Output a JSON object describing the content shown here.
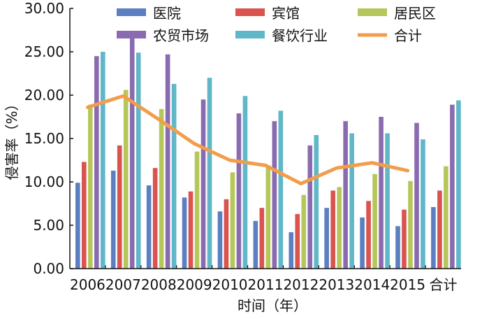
{
  "chart_data": {
    "type": "bar",
    "title": "",
    "xlabel": "时间（年）",
    "ylabel": "侵害率（%）",
    "ylim": [
      0,
      30
    ],
    "yticks": [
      "0.00",
      "5.00",
      "10.00",
      "15.00",
      "20.00",
      "25.00",
      "30.00"
    ],
    "categories": [
      "2006",
      "2007",
      "2008",
      "2009",
      "2010",
      "2011",
      "2012",
      "2013",
      "2014",
      "2015",
      "合计"
    ],
    "series": [
      {
        "name": "医院",
        "color": "#5b7fc0",
        "values": [
          9.9,
          11.3,
          9.6,
          8.2,
          6.6,
          5.5,
          4.2,
          7.0,
          5.9,
          4.9,
          7.1
        ]
      },
      {
        "name": "宾馆",
        "color": "#d9534f",
        "values": [
          12.3,
          14.2,
          11.6,
          8.9,
          8.0,
          7.0,
          6.3,
          9.0,
          7.8,
          6.8,
          9.0
        ]
      },
      {
        "name": "居民区",
        "color": "#b5c75a",
        "values": [
          18.9,
          20.6,
          18.4,
          13.5,
          11.1,
          11.7,
          8.5,
          9.4,
          10.9,
          10.1,
          11.8
        ]
      },
      {
        "name": "农贸市场",
        "color": "#8a6bb0",
        "values": [
          24.5,
          26.6,
          24.7,
          19.5,
          17.9,
          17.0,
          14.2,
          17.0,
          17.5,
          16.8,
          18.9
        ]
      },
      {
        "name": "餐饮行业",
        "color": "#5fb7c8",
        "values": [
          25.0,
          24.9,
          21.3,
          22.0,
          19.9,
          18.2,
          15.4,
          15.6,
          15.6,
          14.9,
          19.4
        ]
      }
    ],
    "line": {
      "name": "合计",
      "color": "#f29d4b",
      "values": [
        18.6,
        19.9,
        17.2,
        14.4,
        12.5,
        11.9,
        9.8,
        11.6,
        12.2,
        11.3
      ]
    },
    "legend": [
      "医院",
      "宾馆",
      "居民区",
      "农贸市场",
      "餐饮行业",
      "合计"
    ]
  }
}
